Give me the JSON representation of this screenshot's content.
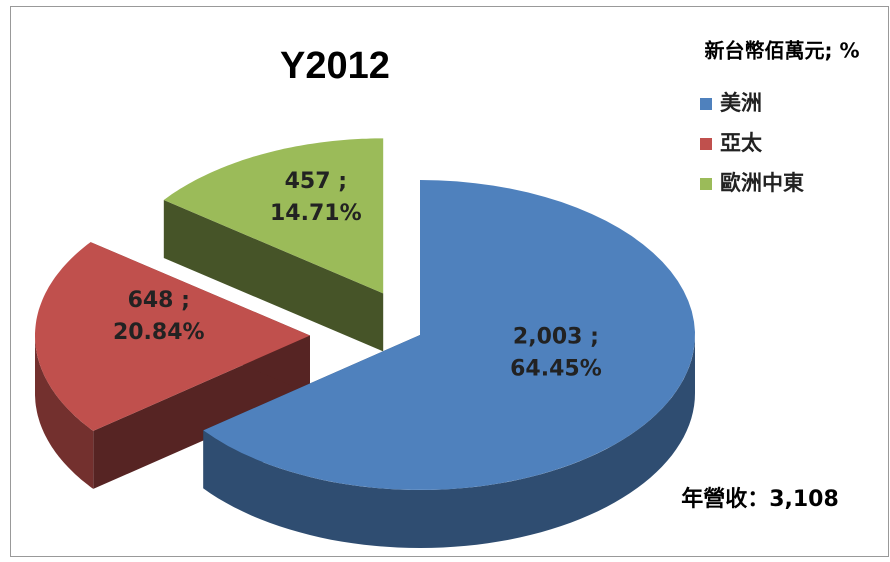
{
  "chart_data": {
    "type": "pie3d",
    "title": "Y2012",
    "subtitle": "新台幣佰萬元; %",
    "categories": [
      "美洲",
      "亞太",
      "歐洲中東"
    ],
    "values": [
      2003,
      648,
      457
    ],
    "value_labels": [
      "2,003 ;",
      "648 ;",
      "457 ;"
    ],
    "percents": [
      64.45,
      20.84,
      14.71
    ],
    "percent_labels": [
      "64.45%",
      "20.84%",
      "14.71%"
    ],
    "colors": [
      "#4f81bd",
      "#c0504d",
      "#9bbb59"
    ],
    "annotation": "年營收：3,108",
    "legend": "right"
  }
}
